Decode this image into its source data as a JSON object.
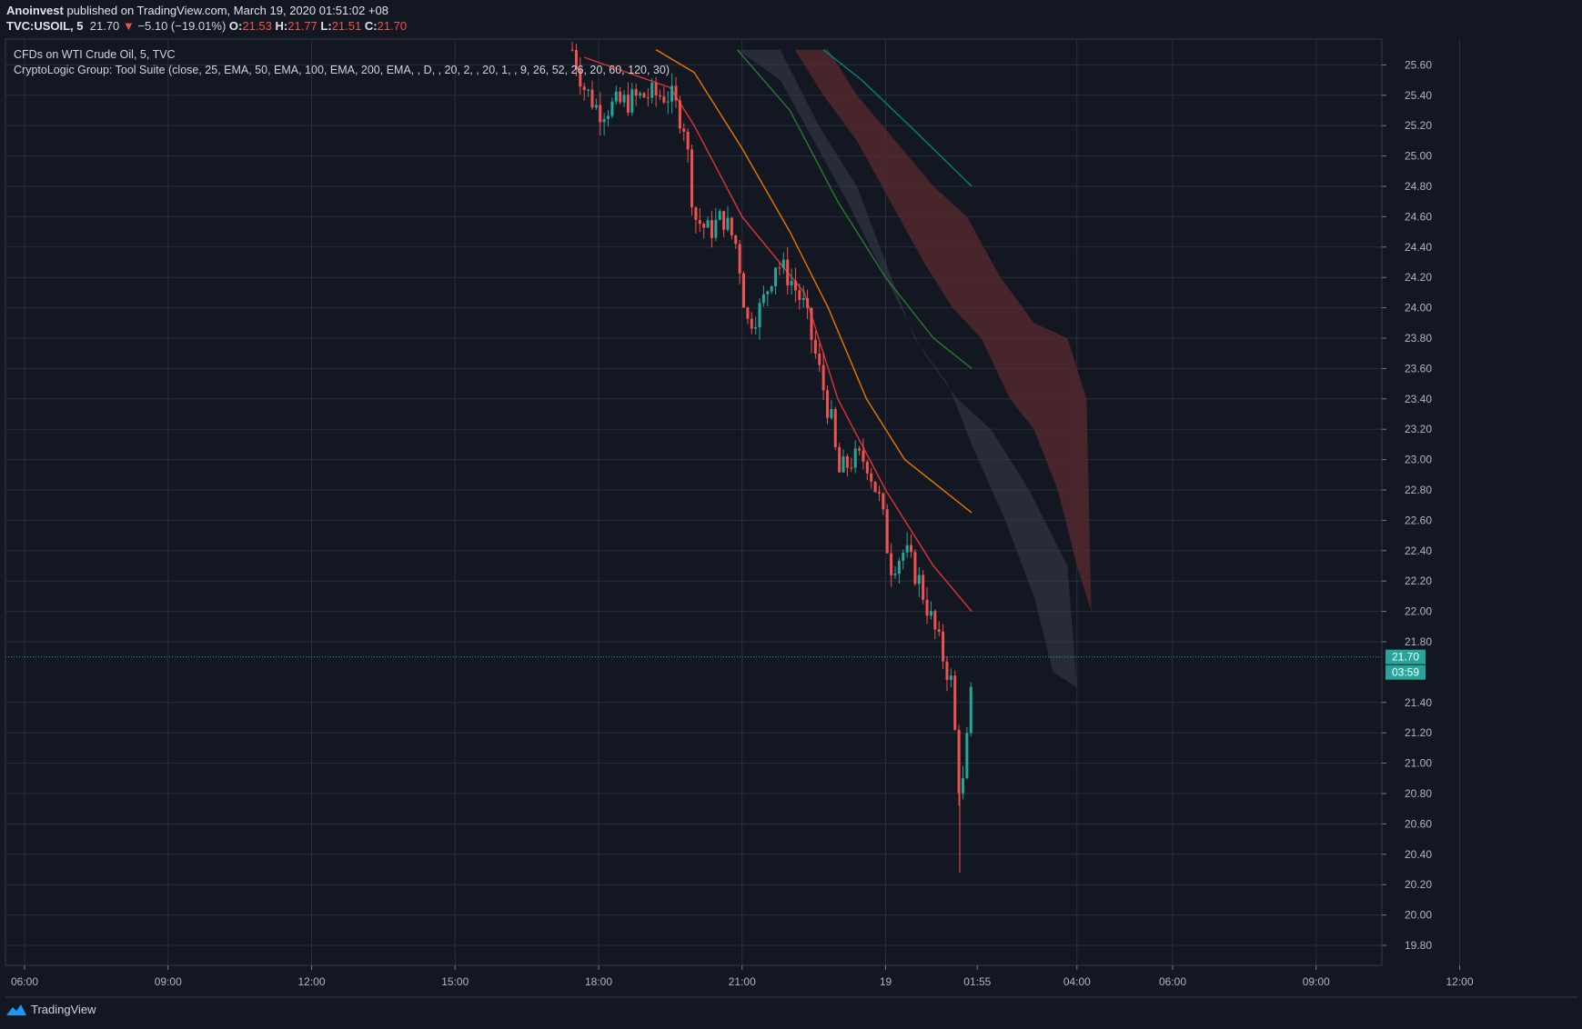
{
  "header": {
    "author": "Anoinvest",
    "published": " published on TradingView.com, March 19, 2020 01:51:02 +08",
    "symbol": "TVC:USOIL, 5",
    "price": "21.70",
    "change": "−5.10 (−19.01%)",
    "o_label": "O:",
    "o_value": "21.53",
    "h_label": "H:",
    "h_value": "21.77",
    "l_label": "L:",
    "l_value": "21.51",
    "c_label": "C:",
    "c_value": "21.70"
  },
  "legend": {
    "title": "CFDs on WTI Crude Oil, 5, TVC",
    "indicator": "CryptoLogic Group: Tool Suite (close, 25, EMA, 50, EMA, 100, EMA, 200, EMA, , D, , 20, 2, , 20, 1, , 9, 26, 52, 26, 20, 60, 120, 30)"
  },
  "footer": {
    "brand": "TradingView"
  },
  "colors": {
    "background": "#131722",
    "grid": "#2a2e39",
    "up": "#26a69a",
    "down": "#ef5350",
    "ema25": "#e53935",
    "ema50": "#f57c00",
    "ema100": "#2e7d32",
    "ema200": "#00897b",
    "cloud_red": "#5b2a2f",
    "cloud_grey": "#3a3d4a",
    "last_price": "#26a69a"
  },
  "chart_data": {
    "type": "candlestick",
    "ylim": [
      19.7,
      25.7
    ],
    "y_ticks": [
      "25.60",
      "25.40",
      "25.20",
      "25.00",
      "24.80",
      "24.60",
      "24.40",
      "24.20",
      "24.00",
      "23.80",
      "23.60",
      "23.40",
      "23.20",
      "23.00",
      "22.80",
      "22.60",
      "22.40",
      "22.20",
      "22.00",
      "21.80",
      "21.40",
      "21.20",
      "21.00",
      "20.80",
      "20.60",
      "20.40",
      "20.20",
      "20.00",
      "19.80"
    ],
    "x_ticks": [
      "06:00",
      "09:00",
      "12:00",
      "15:00",
      "18:00",
      "21:00",
      "19",
      "01:55",
      "04:00",
      "06:00",
      "09:00",
      "12:00"
    ],
    "last_price": {
      "value": 21.7,
      "label": "21.70",
      "countdown": "03:59"
    },
    "price_path": [
      [
        17.45,
        25.7
      ],
      [
        17.7,
        25.45
      ],
      [
        18.0,
        25.3
      ],
      [
        18.5,
        25.35
      ],
      [
        19.0,
        25.4
      ],
      [
        19.5,
        25.4
      ],
      [
        19.8,
        25.2
      ],
      [
        20.0,
        24.6
      ],
      [
        20.3,
        24.5
      ],
      [
        20.6,
        24.6
      ],
      [
        20.9,
        24.4
      ],
      [
        21.1,
        23.9
      ],
      [
        21.4,
        24.0
      ],
      [
        21.7,
        24.3
      ],
      [
        22.0,
        24.2
      ],
      [
        22.3,
        24.0
      ],
      [
        22.6,
        23.6
      ],
      [
        22.9,
        23.2
      ],
      [
        23.0,
        22.9
      ],
      [
        23.3,
        23.0
      ],
      [
        23.6,
        23.0
      ],
      [
        23.9,
        22.7
      ],
      [
        24.1,
        22.3
      ],
      [
        24.4,
        22.4
      ],
      [
        24.7,
        22.2
      ],
      [
        25.0,
        21.9
      ],
      [
        25.2,
        21.7
      ],
      [
        25.4,
        21.5
      ],
      [
        25.5,
        20.9
      ],
      [
        25.6,
        20.8
      ],
      [
        25.75,
        21.3
      ],
      [
        25.85,
        21.7
      ]
    ],
    "series": [
      {
        "name": "EMA 25",
        "color": "#e53935",
        "points": [
          [
            17.7,
            25.65
          ],
          [
            19.5,
            25.45
          ],
          [
            20.0,
            25.2
          ],
          [
            21.0,
            24.6
          ],
          [
            22.3,
            24.1
          ],
          [
            23.0,
            23.4
          ],
          [
            24.0,
            22.8
          ],
          [
            25.0,
            22.3
          ],
          [
            25.8,
            22.0
          ]
        ]
      },
      {
        "name": "EMA 50",
        "color": "#f57c00",
        "points": [
          [
            19.2,
            25.7
          ],
          [
            20.0,
            25.55
          ],
          [
            21.0,
            25.05
          ],
          [
            22.0,
            24.5
          ],
          [
            22.8,
            24.0
          ],
          [
            23.6,
            23.4
          ],
          [
            24.4,
            23.0
          ],
          [
            25.8,
            22.65
          ]
        ]
      },
      {
        "name": "EMA 100",
        "color": "#2e7d32",
        "points": [
          [
            20.9,
            25.7
          ],
          [
            22.0,
            25.3
          ],
          [
            23.0,
            24.7
          ],
          [
            24.0,
            24.2
          ],
          [
            25.0,
            23.8
          ],
          [
            25.8,
            23.6
          ]
        ]
      },
      {
        "name": "EMA 200",
        "color": "#00897b",
        "points": [
          [
            22.7,
            25.7
          ],
          [
            23.5,
            25.5
          ],
          [
            24.5,
            25.2
          ],
          [
            25.8,
            24.8
          ]
        ]
      }
    ],
    "cloud_grey": {
      "upper": [
        [
          20.9,
          25.7
        ],
        [
          21.8,
          25.5
        ],
        [
          22.5,
          25.1
        ],
        [
          23.2,
          24.7
        ],
        [
          24.0,
          24.2
        ],
        [
          24.8,
          23.7
        ],
        [
          25.5,
          23.4
        ],
        [
          26.2,
          23.2
        ],
        [
          27.0,
          22.8
        ],
        [
          27.8,
          22.3
        ],
        [
          28.0,
          21.5
        ]
      ],
      "lower": [
        [
          28.0,
          21.5
        ],
        [
          27.5,
          21.6
        ],
        [
          27.1,
          22.1
        ],
        [
          26.5,
          22.6
        ],
        [
          25.8,
          23.1
        ],
        [
          25.3,
          23.5
        ],
        [
          24.6,
          23.8
        ],
        [
          24.0,
          24.3
        ],
        [
          23.4,
          24.8
        ],
        [
          22.6,
          25.2
        ],
        [
          21.8,
          25.7
        ]
      ]
    },
    "cloud_red": {
      "upper": [
        [
          21.6,
          25.7
        ],
        [
          22.8,
          25.7
        ],
        [
          23.4,
          25.4
        ],
        [
          24.2,
          25.1
        ],
        [
          25.0,
          24.8
        ],
        [
          25.7,
          24.6
        ],
        [
          26.4,
          24.2
        ],
        [
          27.1,
          23.9
        ],
        [
          27.8,
          23.8
        ],
        [
          28.2,
          23.4
        ],
        [
          28.3,
          22.0
        ]
      ],
      "lower": [
        [
          28.3,
          22.0
        ],
        [
          28.0,
          22.3
        ],
        [
          27.6,
          22.8
        ],
        [
          27.1,
          23.2
        ],
        [
          26.6,
          23.4
        ],
        [
          26.0,
          23.8
        ],
        [
          25.4,
          24.0
        ],
        [
          24.8,
          24.3
        ],
        [
          24.1,
          24.7
        ],
        [
          23.4,
          25.1
        ],
        [
          22.7,
          25.4
        ],
        [
          22.1,
          25.7
        ]
      ]
    }
  }
}
